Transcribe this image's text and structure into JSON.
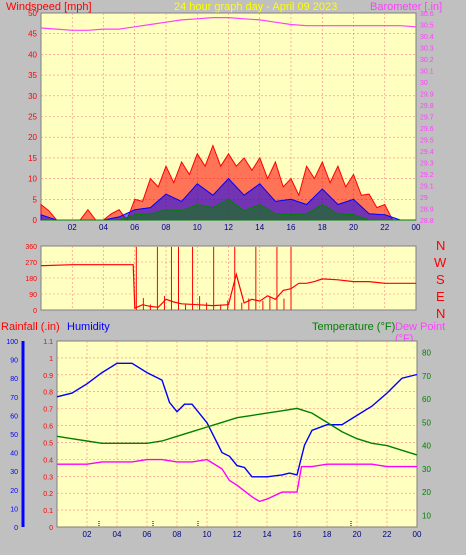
{
  "colors": {
    "background": "#c0c0c0",
    "plot_bg": "#ffffc0",
    "grid": "#ff8080",
    "windspeed": "#ff0000",
    "barometer": "#ff40ff",
    "rainfall": "#ff0000",
    "humidity": "#0000ff",
    "temperature": "#008000",
    "dewpoint": "#ff00ff",
    "title": "#ffff00",
    "gust": "#ff0000",
    "avg": "#0000ff",
    "min": "#008000"
  },
  "header": {
    "windspeed_label": "Windspeed [mph]",
    "title": "24 hour graph day - April 09 2023",
    "barometer_label": "Barometer [.in]"
  },
  "compass": {
    "letters": [
      "N",
      "W",
      "S",
      "E",
      "N"
    ]
  },
  "lower_header": {
    "rainfall_label": "Rainfall (.in)",
    "humidity_label": "Humidity",
    "temperature_label": "Temperature (°F)",
    "dewpoint_label": "Dew Point (°F)"
  },
  "chart_data": [
    {
      "type": "line",
      "title": "24 hour graph day - April 09 2023",
      "x_ticks": [
        "02",
        "04",
        "06",
        "08",
        "10",
        "12",
        "14",
        "16",
        "18",
        "20",
        "22",
        "00"
      ],
      "y_left": {
        "label": "Windspeed [mph]",
        "ticks": [
          0,
          5,
          10,
          15,
          20,
          25,
          30,
          35,
          40,
          45,
          50
        ],
        "ylim": [
          0,
          50
        ]
      },
      "y_right": {
        "label": "Barometer [.in]",
        "ticks": [
          "28.8",
          "28.9",
          "29",
          "29.1",
          "29.2",
          "29.3",
          "29.4",
          "29.5",
          "29.6",
          "29.7",
          "29.8",
          "29.9",
          "30",
          "30.1",
          "30.2",
          "30.3",
          "30.4",
          "30.5",
          "30.6"
        ],
        "ylim": [
          28.8,
          30.6
        ]
      },
      "series": [
        {
          "name": "Barometer",
          "axis": "right",
          "x": [
            0,
            1,
            2,
            3,
            4,
            5,
            6,
            7,
            8,
            9,
            10,
            11,
            12,
            13,
            14,
            15,
            16,
            17,
            18,
            19,
            20,
            21,
            22,
            23,
            24
          ],
          "values": [
            30.47,
            30.46,
            30.45,
            30.45,
            30.46,
            30.46,
            30.48,
            30.5,
            30.52,
            30.54,
            30.55,
            30.56,
            30.56,
            30.55,
            30.54,
            30.52,
            30.5,
            30.49,
            30.49,
            30.49,
            30.49,
            30.49,
            30.49,
            30.49,
            30.48
          ]
        },
        {
          "name": "Gust",
          "axis": "left",
          "x": [
            0,
            0.5,
            1,
            1.5,
            2,
            2.5,
            3,
            3.5,
            4,
            4.5,
            5,
            5.5,
            6,
            6.5,
            7,
            7.5,
            8,
            8.5,
            9,
            9.5,
            10,
            10.5,
            11,
            11.5,
            12,
            12.5,
            13,
            13.5,
            14,
            14.5,
            15,
            15.5,
            16,
            16.5,
            17,
            17.5,
            18,
            18.5,
            19,
            19.5,
            20,
            20.5,
            21,
            21.5,
            22,
            22.5,
            23,
            23.5,
            24
          ],
          "values": [
            3,
            3,
            0,
            0,
            0,
            0,
            2,
            0,
            0,
            2,
            2,
            0,
            4,
            6,
            8,
            10,
            11,
            11,
            12,
            13,
            14,
            15,
            16,
            15,
            14,
            15,
            13,
            14,
            13,
            12,
            12,
            10,
            8,
            8,
            11,
            12,
            12,
            11,
            11,
            10,
            9,
            8,
            5,
            4,
            3,
            0,
            0,
            0,
            0
          ]
        },
        {
          "name": "Average",
          "axis": "left",
          "x": [
            0,
            1,
            2,
            3,
            4,
            5,
            6,
            7,
            8,
            9,
            10,
            11,
            12,
            13,
            14,
            15,
            16,
            17,
            18,
            19,
            20,
            21,
            22,
            23,
            24
          ],
          "values": [
            1,
            0,
            0,
            0,
            0,
            1,
            2,
            4,
            5,
            6,
            7,
            8,
            8,
            8,
            7,
            6,
            4,
            5,
            6,
            5,
            4,
            2,
            1,
            0,
            0
          ]
        },
        {
          "name": "Minimum",
          "axis": "left",
          "x": [
            0,
            1,
            2,
            3,
            4,
            5,
            6,
            7,
            8,
            9,
            10,
            11,
            12,
            13,
            14,
            15,
            16,
            17,
            18,
            19,
            20,
            21,
            22,
            23,
            24
          ],
          "values": [
            0,
            0,
            0,
            0,
            0,
            0,
            1,
            2,
            2,
            3,
            3,
            4,
            4,
            3,
            3,
            2,
            1,
            2,
            3,
            2,
            1,
            0,
            0,
            0,
            0
          ]
        }
      ]
    },
    {
      "type": "line",
      "x_ticks": [
        "02",
        "04",
        "06",
        "08",
        "10",
        "12",
        "14",
        "16",
        "18",
        "20",
        "22",
        "00"
      ],
      "y_left": {
        "label": "",
        "ticks": [
          0,
          90,
          180,
          270,
          360
        ],
        "ylim": [
          0,
          360
        ]
      },
      "y_right_labels": [
        "N",
        "W",
        "S",
        "E",
        "N"
      ],
      "series": [
        {
          "name": "Wind Direction",
          "x": [
            0,
            0.2,
            2,
            4,
            5.9,
            6,
            6.5,
            7,
            7.5,
            8,
            8.5,
            9,
            10,
            11,
            12,
            12.5,
            13,
            13.5,
            14,
            14.5,
            15,
            15.5,
            16,
            16.5,
            17,
            17.5,
            18,
            19,
            20,
            21,
            22,
            23,
            24
          ],
          "values": [
            250,
            250,
            255,
            255,
            255,
            10,
            30,
            20,
            15,
            60,
            45,
            35,
            30,
            25,
            30,
            200,
            40,
            60,
            50,
            80,
            60,
            110,
            120,
            150,
            150,
            160,
            175,
            170,
            160,
            160,
            150,
            150,
            150
          ]
        }
      ]
    },
    {
      "type": "line",
      "x_ticks": [
        "02",
        "04",
        "06",
        "08",
        "10",
        "12",
        "14",
        "16",
        "18",
        "20",
        "22",
        "00"
      ],
      "y_left_rain": {
        "label": "Rainfall (.in)",
        "ticks": [
          0,
          0.1,
          0.2,
          0.3,
          0.4,
          0.5,
          0.6,
          0.7,
          0.8,
          0.9,
          1,
          1.1
        ],
        "ylim": [
          0,
          1.1
        ]
      },
      "y_left_humidity": {
        "label": "Humidity",
        "ticks": [
          0,
          10,
          20,
          30,
          40,
          50,
          60,
          70,
          80,
          90,
          100
        ],
        "ylim": [
          0,
          100
        ]
      },
      "y_right": {
        "label": "Temperature (°F)",
        "ticks": [
          10,
          20,
          30,
          40,
          50,
          60,
          70,
          80
        ],
        "ylim": [
          5,
          85
        ]
      },
      "series": [
        {
          "name": "Humidity",
          "axis": "humidity",
          "x": [
            0,
            1,
            2,
            3,
            4,
            5,
            6,
            7,
            7.5,
            8,
            8.5,
            9,
            10,
            11,
            11.5,
            12,
            12.5,
            13,
            14,
            15,
            15.5,
            16,
            16.5,
            17,
            18,
            19,
            20,
            21,
            22,
            23,
            24
          ],
          "values": [
            70,
            72,
            77,
            83,
            88,
            88,
            83,
            79,
            67,
            62,
            66,
            66,
            56,
            40,
            38,
            33,
            32,
            27,
            27,
            28,
            29,
            28,
            44,
            52,
            55,
            55,
            60,
            65,
            72,
            80,
            82
          ]
        },
        {
          "name": "Temperature",
          "axis": "right",
          "x": [
            0,
            1,
            2,
            3,
            4,
            5,
            6,
            7,
            8,
            9,
            10,
            11,
            12,
            13,
            14,
            15,
            16,
            17,
            18,
            19,
            20,
            21,
            22,
            23,
            24
          ],
          "values": [
            44,
            43,
            42,
            41,
            41,
            41,
            41,
            42,
            44,
            46,
            48,
            50,
            52,
            53,
            54,
            55,
            56,
            54,
            50,
            46,
            43,
            41,
            40,
            38,
            36
          ]
        },
        {
          "name": "Dew Point",
          "axis": "right",
          "x": [
            0,
            1,
            2,
            3,
            4,
            5,
            6,
            7,
            8,
            9,
            10,
            11,
            11.5,
            12,
            13,
            13.5,
            14,
            15,
            16,
            16.3,
            17,
            18,
            19,
            20,
            21,
            22,
            23,
            24
          ],
          "values": [
            32,
            32,
            32,
            33,
            33,
            33,
            34,
            34,
            33,
            33,
            34,
            30,
            25,
            23,
            18,
            16,
            17,
            20,
            20,
            31,
            31,
            32,
            32,
            32,
            32,
            31,
            31,
            31
          ]
        }
      ]
    }
  ]
}
